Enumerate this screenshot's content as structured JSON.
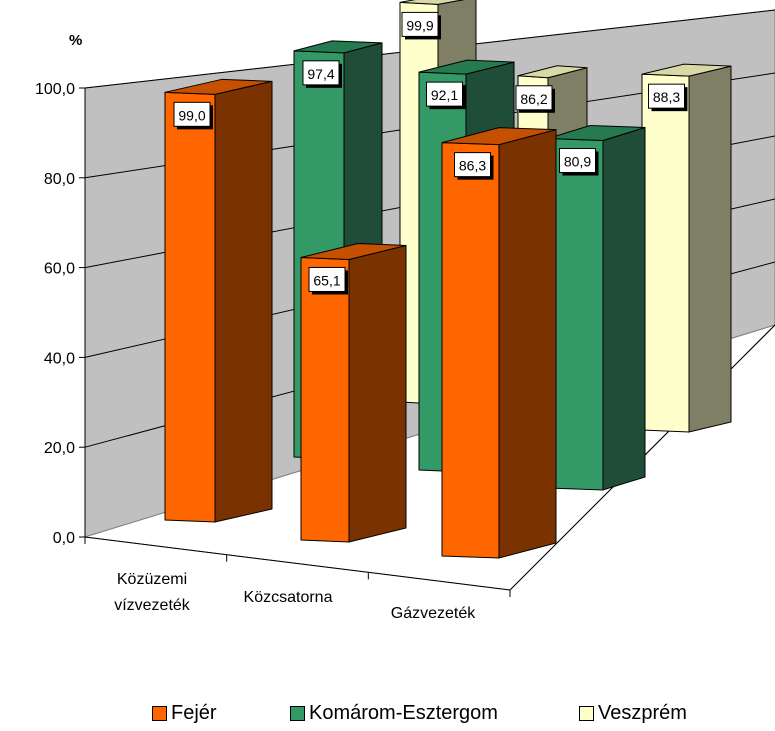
{
  "chart_data": {
    "type": "bar",
    "ylabel": "%",
    "ylim": [
      0,
      100
    ],
    "yticks": [
      "0,0",
      "20,0",
      "40,0",
      "60,0",
      "80,0",
      "100,0"
    ],
    "categories": [
      "Közüzemi vízvezeték",
      "Közcsatorna",
      "Gázvezeték"
    ],
    "category_lines": [
      [
        "Közüzemi",
        "vízvezeték"
      ],
      [
        "Közcsatorna"
      ],
      [
        "Gázvezeték"
      ]
    ],
    "series": [
      {
        "name": "Fejér",
        "values": [
          99.0,
          65.1,
          86.3
        ],
        "labels": [
          "99,0",
          "65,1",
          "86,3"
        ],
        "color": "#ff6600",
        "side_color": "#7a3300",
        "top_color": "#c45000"
      },
      {
        "name": "Komárom-Esztergom",
        "values": [
          97.4,
          92.1,
          80.9
        ],
        "labels": [
          "97,4",
          "92,1",
          "80,9"
        ],
        "color": "#339966",
        "side_color": "#1f4d37",
        "top_color": "#267a50"
      },
      {
        "name": "Veszprém",
        "values": [
          99.9,
          86.2,
          88.3
        ],
        "labels": [
          "99,9",
          "86,2",
          "88,3"
        ],
        "color": "#ffffcc",
        "side_color": "#7f7f66",
        "top_color": "#d9d9a8"
      }
    ],
    "grid": true,
    "legend_position": "bottom"
  }
}
